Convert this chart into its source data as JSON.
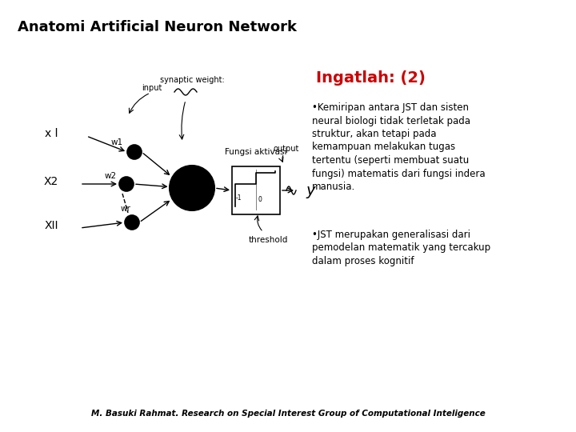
{
  "title": "Anatomi Artificial Neuron Network",
  "title_fontsize": 13,
  "title_fontweight": "bold",
  "ingatlah_title": "Ingatlah: (2)",
  "ingatlah_color": "#CC0000",
  "ingatlah_fontsize": 14,
  "bullet1": "•Kemiripan antara JST dan sisten neural biologi tidak terletak pada struktur, akan tetapi pada kemampuan melakukan tugas tertentu (seperti membuat suatu fungsi) matematis dari fungsi indera manusia.",
  "bullet2": "•JST merupakan generalisasi dari pemodelan matematik yang tercakup dalam proses kognitif",
  "footer": "M. Basuki Rahmat. Research on Special Interest Group of Computational Inteligence",
  "footer_fontsize": 7.5,
  "bg_color": "#FFFFFF",
  "text_color": "#000000"
}
